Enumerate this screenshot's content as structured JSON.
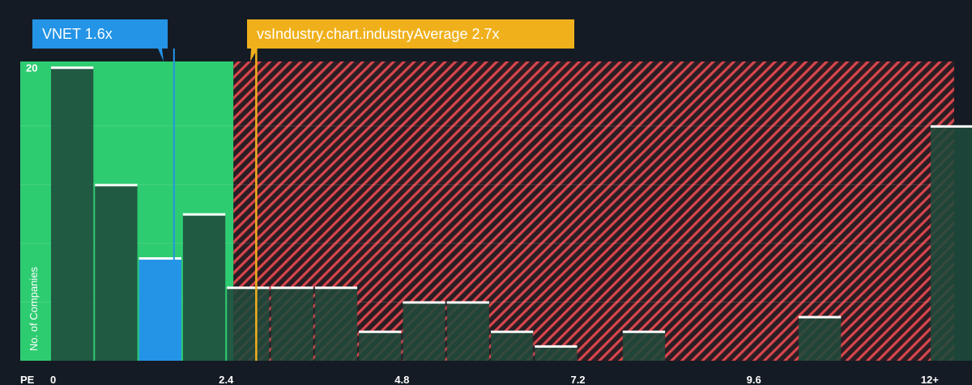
{
  "colors": {
    "background": "#151b24",
    "green_zone": "#2ecc71",
    "red_zone": "#d8464b",
    "bar_dark": "#1f4a3b",
    "company_bar": "#2394e6",
    "industry_line": "#f0b01b",
    "cap_line": "#ffffff"
  },
  "callouts": {
    "company": {
      "label": "VNET",
      "value": "1.6x"
    },
    "industry": {
      "label": "vsIndustry.chart.industryAverage",
      "value": "2.7x"
    }
  },
  "chart_data": {
    "type": "bar",
    "title": "",
    "xlabel": "PE",
    "ylabel": "No. of Companies",
    "xlim": [
      0,
      12.3
    ],
    "ylim": [
      0,
      20.4
    ],
    "x_ticks": [
      "0",
      "2.4",
      "4.8",
      "7.2",
      "9.6",
      "12+"
    ],
    "x_tick_values": [
      0,
      2.4,
      4.8,
      7.2,
      9.6,
      12
    ],
    "y_ticks": [
      "20"
    ],
    "y_tick_values": [
      20
    ],
    "bin_width": 0.6,
    "bars": [
      {
        "x_start": 0.0,
        "value": 20
      },
      {
        "x_start": 0.6,
        "value": 12
      },
      {
        "x_start": 1.2,
        "value": 7,
        "highlight": true
      },
      {
        "x_start": 1.8,
        "value": 10
      },
      {
        "x_start": 2.4,
        "value": 5
      },
      {
        "x_start": 3.0,
        "value": 5
      },
      {
        "x_start": 3.6,
        "value": 5
      },
      {
        "x_start": 4.2,
        "value": 2
      },
      {
        "x_start": 4.8,
        "value": 4
      },
      {
        "x_start": 5.4,
        "value": 4
      },
      {
        "x_start": 6.0,
        "value": 2
      },
      {
        "x_start": 6.6,
        "value": 1
      },
      {
        "x_start": 7.8,
        "value": 2
      },
      {
        "x_start": 10.2,
        "value": 3
      },
      {
        "x_start": 12.0,
        "value": 16
      }
    ],
    "company_value": 1.6,
    "industry_average": 2.7,
    "fair_zone_end": 2.5
  }
}
